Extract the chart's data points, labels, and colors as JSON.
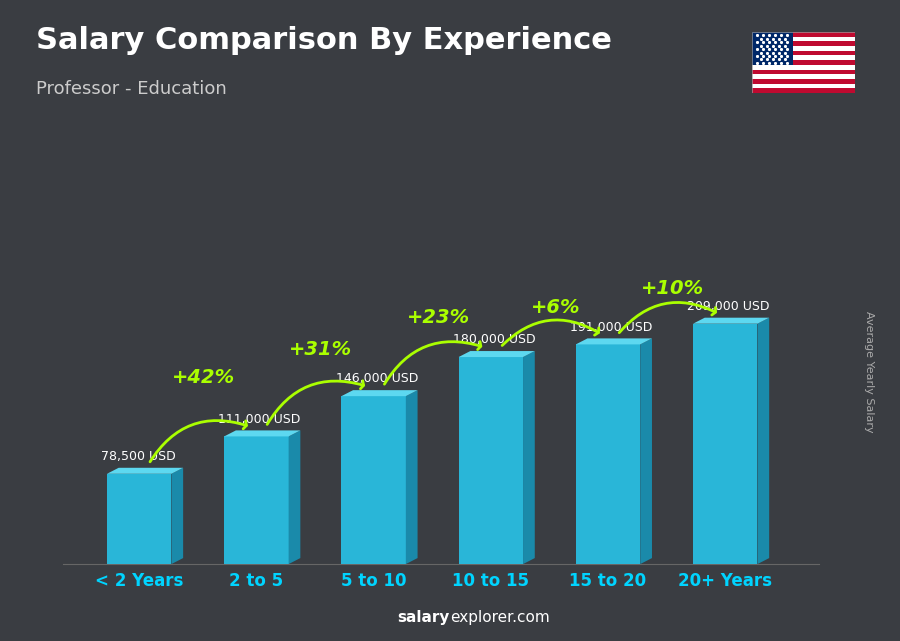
{
  "title": "Salary Comparison By Experience",
  "subtitle": "Professor - Education",
  "categories": [
    "< 2 Years",
    "2 to 5",
    "5 to 10",
    "10 to 15",
    "15 to 20",
    "20+ Years"
  ],
  "values": [
    78500,
    111000,
    146000,
    180000,
    191000,
    209000
  ],
  "salary_labels": [
    "78,500 USD",
    "111,000 USD",
    "146,000 USD",
    "180,000 USD",
    "191,000 USD",
    "209,000 USD"
  ],
  "pct_changes": [
    null,
    "+42%",
    "+31%",
    "+23%",
    "+6%",
    "+10%"
  ],
  "bar_color_front": "#29b6d8",
  "bar_color_top": "#5dd8f0",
  "bar_color_side": "#1a8aaa",
  "bg_color": "#3a3d42",
  "title_color": "#ffffff",
  "subtitle_color": "#cccccc",
  "salary_label_color": "#ffffff",
  "pct_color": "#aaff00",
  "xtick_color": "#00d4ff",
  "ylabel_text": "Average Yearly Salary",
  "watermark_salary": "salary",
  "watermark_rest": "explorer.com"
}
